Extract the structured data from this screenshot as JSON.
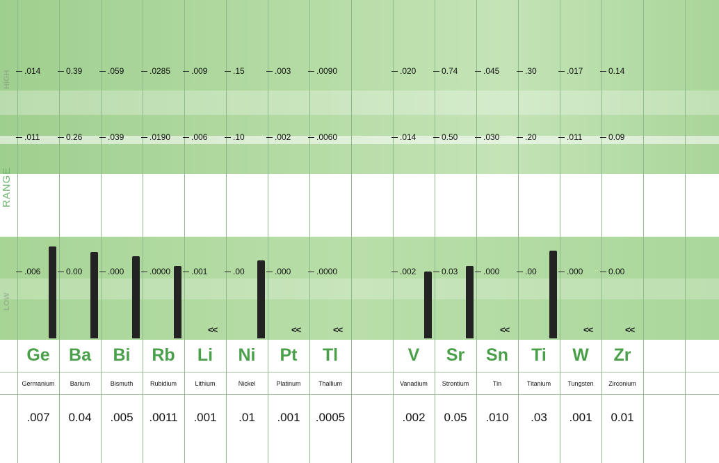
{
  "axis_label": "RANGE",
  "faint_labels": [
    "HIGH",
    "LOW"
  ],
  "chart_data": {
    "type": "bar",
    "categories": [
      "Ge",
      "Ba",
      "Bi",
      "Rb",
      "Li",
      "Ni",
      "Pt",
      "Tl",
      "V",
      "Sr",
      "Sn",
      "Ti",
      "W",
      "Zr"
    ],
    "names": [
      "Germanium",
      "Barium",
      "Bismuth",
      "Rubidium",
      "Lithium",
      "Nickel",
      "Platinum",
      "Thallium",
      "Vanadium",
      "Strontium",
      "Tin",
      "Titanium",
      "Tungsten",
      "Zirconium"
    ],
    "range_high_upper": [
      ".014",
      "0.39",
      ".059",
      ".0285",
      ".009",
      ".15",
      ".003",
      ".0090",
      ".020",
      "0.74",
      ".045",
      ".30",
      ".017",
      "0.14"
    ],
    "range_high_lower": [
      ".011",
      "0.26",
      ".039",
      ".0190",
      ".006",
      ".10",
      ".002",
      ".0060",
      ".014",
      "0.50",
      ".030",
      ".20",
      ".011",
      "0.09"
    ],
    "range_low": [
      ".006",
      "0.00",
      ".000",
      ".0000",
      ".001",
      ".00",
      ".000",
      ".0000",
      ".002",
      "0.03",
      ".000",
      ".00",
      ".000",
      "0.00"
    ],
    "values": [
      ".007",
      "0.04",
      ".005",
      ".0011",
      ".001",
      ".01",
      ".001",
      ".0005",
      ".002",
      "0.05",
      ".010",
      ".03",
      ".001",
      "0.01"
    ],
    "bar_level": [
      0.66,
      0.62,
      0.59,
      0.52,
      0,
      0.56,
      0,
      0,
      0.48,
      0.52,
      0,
      0.63,
      0,
      0
    ],
    "below_range": [
      "",
      "",
      "",
      "",
      "<<",
      "",
      "<<",
      "<<",
      "",
      "",
      "<<",
      "",
      "<<",
      "<<"
    ],
    "colors": {
      "band": "#a9d599",
      "symbol": "#4aa04a",
      "bar": "#232323",
      "grid": "#8fb98a"
    }
  }
}
